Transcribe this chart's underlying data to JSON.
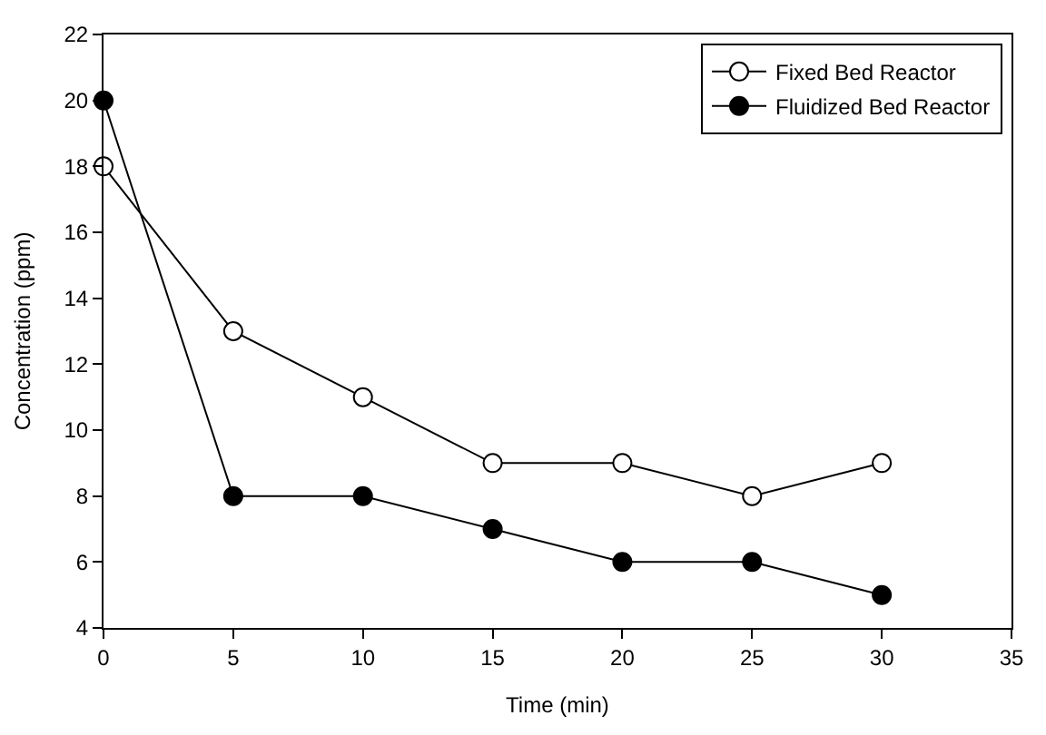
{
  "chart_data": {
    "type": "line",
    "xlabel": "Time (min)",
    "ylabel": "Concentration (ppm)",
    "x": [
      0,
      5,
      10,
      15,
      20,
      25,
      30
    ],
    "series": [
      {
        "name": "Fixed Bed Reactor",
        "color": "#ffffff",
        "values": [
          18,
          13,
          11,
          9,
          9,
          8,
          9
        ]
      },
      {
        "name": "Fluidized Bed Reactor",
        "color": "#000000",
        "values": [
          20,
          8,
          8,
          7,
          6,
          6,
          5
        ]
      }
    ],
    "xlim": [
      0,
      35
    ],
    "xticks": [
      0,
      5,
      10,
      15,
      20,
      25,
      30,
      35
    ],
    "ylim": [
      4,
      22
    ],
    "yticks": [
      4,
      6,
      8,
      10,
      12,
      14,
      16,
      18,
      20,
      22
    ],
    "legend": "top right",
    "marker": "circle",
    "line_style": "solid"
  }
}
